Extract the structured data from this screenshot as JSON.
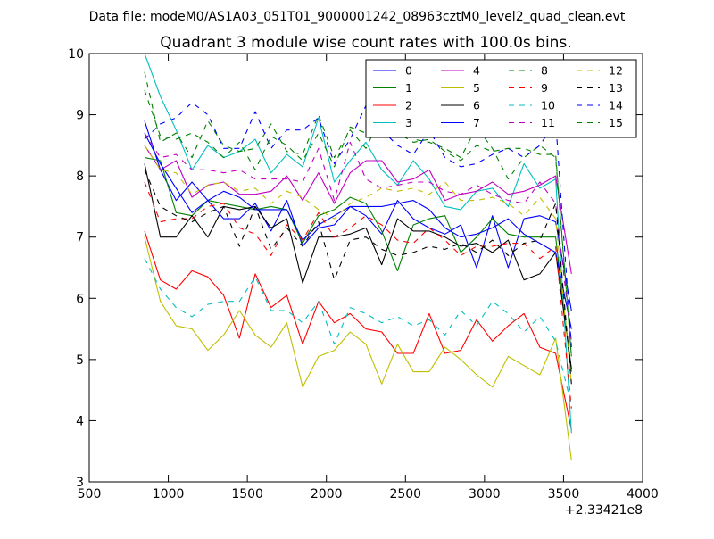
{
  "figure": {
    "suptitle": "Data file: modeM0/AS1A03_051T01_9000001242_08963cztM0_level2_quad_clean.evt"
  },
  "chart_data": {
    "type": "line",
    "title": "Quadrant 3 module wise count rates with 100.0s bins.",
    "xlabel": "",
    "ylabel": "",
    "x_offset_text": "+2.33421e8",
    "xlim": [
      500,
      4000
    ],
    "ylim": [
      3,
      10
    ],
    "xticks": [
      500,
      1000,
      1500,
      2000,
      2500,
      3000,
      3500,
      4000
    ],
    "yticks": [
      3,
      4,
      5,
      6,
      7,
      8,
      9,
      10
    ],
    "grid": false,
    "legend": {
      "placement": "top-right",
      "columns": 4
    },
    "x": [
      850,
      950,
      1050,
      1150,
      1250,
      1350,
      1450,
      1550,
      1650,
      1750,
      1850,
      1950,
      2050,
      2150,
      2250,
      2350,
      2450,
      2550,
      2650,
      2750,
      2850,
      2950,
      3050,
      3150,
      3250,
      3350,
      3450,
      3550
    ],
    "series": [
      {
        "name": "0",
        "color": "#0000ff",
        "dash": "solid",
        "values": [
          8.9,
          8.1,
          7.6,
          7.9,
          7.6,
          7.3,
          7.3,
          7.55,
          7.1,
          7.6,
          6.85,
          7.15,
          7.2,
          7.5,
          7.35,
          7.05,
          7.6,
          7.3,
          7.15,
          7.05,
          7.2,
          6.5,
          7.35,
          6.5,
          7.3,
          7.35,
          7.25,
          5.8
        ]
      },
      {
        "name": "1",
        "color": "#008000",
        "dash": "solid",
        "values": [
          8.3,
          8.25,
          7.4,
          7.35,
          7.6,
          7.55,
          7.5,
          7.45,
          7.5,
          7.45,
          6.9,
          7.35,
          7.45,
          7.65,
          7.55,
          7.1,
          6.45,
          7.2,
          7.3,
          7.35,
          6.75,
          7.0,
          7.3,
          7.05,
          7.0,
          7.0,
          7.0,
          4.8
        ]
      },
      {
        "name": "2",
        "color": "#ff0000",
        "dash": "solid",
        "values": [
          7.1,
          6.3,
          6.15,
          6.45,
          6.35,
          6.05,
          5.35,
          6.4,
          5.85,
          6.05,
          5.25,
          5.95,
          5.6,
          5.75,
          5.5,
          5.45,
          5.1,
          5.1,
          5.75,
          5.1,
          5.15,
          5.65,
          5.3,
          5.55,
          5.75,
          5.2,
          5.1,
          3.85
        ]
      },
      {
        "name": "3",
        "color": "#00bfbf",
        "dash": "solid",
        "values": [
          10.0,
          9.3,
          8.75,
          8.1,
          8.5,
          8.3,
          8.4,
          8.6,
          8.05,
          8.35,
          8.15,
          8.95,
          7.9,
          8.25,
          8.55,
          8.1,
          7.85,
          8.25,
          7.95,
          7.5,
          7.45,
          7.75,
          7.8,
          7.5,
          8.2,
          7.8,
          7.95,
          3.8
        ]
      },
      {
        "name": "4",
        "color": "#bf00bf",
        "dash": "solid",
        "values": [
          8.5,
          8.1,
          8.25,
          7.65,
          7.85,
          7.9,
          7.7,
          7.7,
          7.75,
          8.0,
          7.6,
          8.05,
          7.55,
          8.05,
          8.25,
          8.25,
          7.9,
          7.95,
          8.1,
          7.6,
          7.7,
          7.75,
          7.9,
          7.7,
          7.75,
          7.85,
          8.0,
          6.4
        ]
      },
      {
        "name": "5",
        "color": "#bfbf00",
        "dash": "solid",
        "values": [
          7.0,
          5.95,
          5.55,
          5.5,
          5.15,
          5.4,
          5.8,
          5.4,
          5.2,
          5.6,
          4.55,
          5.05,
          5.15,
          5.45,
          5.25,
          4.6,
          5.25,
          4.8,
          4.8,
          5.2,
          5.0,
          4.75,
          4.55,
          5.05,
          4.9,
          4.75,
          5.35,
          3.35
        ]
      },
      {
        "name": "6",
        "color": "#000000",
        "dash": "solid",
        "values": [
          8.2,
          7.0,
          7.0,
          7.35,
          7.0,
          7.5,
          7.45,
          7.5,
          7.15,
          7.3,
          6.25,
          7.0,
          7.0,
          7.05,
          7.15,
          6.55,
          7.3,
          7.1,
          7.1,
          7.0,
          6.85,
          6.9,
          6.75,
          6.95,
          6.3,
          6.4,
          6.75,
          4.85
        ]
      },
      {
        "name": "7",
        "color": "#0000ff",
        "dash": "solid",
        "values": [
          8.7,
          8.2,
          7.8,
          7.4,
          7.6,
          7.75,
          7.65,
          7.45,
          7.45,
          7.45,
          6.95,
          7.2,
          7.35,
          7.5,
          7.5,
          7.5,
          7.55,
          7.6,
          7.45,
          7.15,
          7.0,
          7.05,
          7.15,
          7.3,
          7.05,
          6.9,
          6.75,
          5.5
        ]
      },
      {
        "name": "8",
        "color": "#008000",
        "dash": "dashed",
        "values": [
          9.7,
          8.55,
          8.7,
          8.3,
          8.9,
          8.5,
          8.4,
          8.45,
          8.85,
          8.4,
          8.35,
          9.0,
          8.3,
          8.75,
          8.45,
          9.0,
          8.9,
          8.6,
          8.55,
          8.45,
          8.3,
          8.8,
          8.45,
          7.95,
          8.3,
          8.5,
          8.3,
          5.05
        ]
      },
      {
        "name": "9",
        "color": "#ff0000",
        "dash": "dashed",
        "values": [
          7.9,
          7.25,
          7.3,
          7.3,
          7.5,
          7.55,
          7.15,
          7.05,
          6.7,
          7.2,
          6.95,
          7.4,
          7.0,
          7.15,
          7.35,
          7.2,
          6.95,
          6.9,
          7.15,
          6.95,
          6.7,
          6.85,
          6.85,
          6.9,
          6.9,
          6.65,
          6.85,
          4.2
        ]
      },
      {
        "name": "10",
        "color": "#00bfbf",
        "dash": "dashed",
        "values": [
          6.65,
          6.15,
          5.85,
          5.7,
          5.9,
          5.95,
          5.95,
          6.35,
          5.8,
          5.8,
          5.6,
          5.95,
          5.25,
          5.85,
          5.75,
          5.6,
          5.7,
          5.55,
          5.65,
          5.4,
          5.8,
          5.55,
          5.95,
          5.75,
          5.45,
          5.7,
          5.3,
          4.25
        ]
      },
      {
        "name": "11",
        "color": "#bf00bf",
        "dash": "dashed",
        "values": [
          8.7,
          8.3,
          8.35,
          8.1,
          8.1,
          8.05,
          8.1,
          7.95,
          7.95,
          7.95,
          7.9,
          8.45,
          7.6,
          8.55,
          7.95,
          7.8,
          7.85,
          7.9,
          7.9,
          7.75,
          7.7,
          7.85,
          7.7,
          7.6,
          7.55,
          7.9,
          7.55,
          5.3
        ]
      },
      {
        "name": "12",
        "color": "#bfbf00",
        "dash": "dashed",
        "values": [
          8.5,
          8.1,
          8.05,
          7.7,
          7.85,
          7.9,
          7.75,
          7.8,
          7.55,
          7.75,
          7.65,
          7.45,
          7.3,
          7.55,
          7.65,
          7.8,
          7.75,
          7.8,
          7.7,
          7.9,
          7.6,
          7.6,
          7.65,
          7.55,
          7.35,
          7.65,
          7.3,
          4.6
        ]
      },
      {
        "name": "13",
        "color": "#000000",
        "dash": "dashed",
        "values": [
          8.1,
          7.5,
          7.35,
          7.25,
          7.4,
          7.5,
          6.85,
          7.5,
          6.8,
          7.15,
          6.85,
          7.25,
          6.3,
          6.95,
          7.0,
          6.8,
          6.7,
          6.75,
          6.85,
          6.8,
          6.9,
          6.75,
          6.95,
          6.7,
          6.9,
          6.95,
          7.55,
          4.6
        ]
      },
      {
        "name": "14",
        "color": "#0000ff",
        "dash": "dashed",
        "values": [
          8.6,
          8.85,
          8.95,
          9.2,
          9.0,
          8.45,
          8.45,
          9.05,
          8.45,
          8.75,
          8.75,
          8.95,
          8.2,
          8.6,
          9.15,
          8.75,
          8.5,
          8.35,
          8.75,
          8.3,
          8.15,
          8.2,
          8.35,
          8.45,
          8.3,
          8.5,
          8.9,
          5.2
        ]
      },
      {
        "name": "15",
        "color": "#008000",
        "dash": "dashed",
        "values": [
          9.4,
          8.65,
          8.6,
          8.7,
          8.55,
          8.3,
          8.55,
          8.1,
          8.65,
          8.5,
          8.25,
          8.7,
          8.15,
          8.8,
          8.7,
          8.9,
          8.7,
          8.55,
          8.6,
          8.4,
          8.25,
          8.5,
          8.4,
          8.45,
          8.45,
          8.35,
          8.35,
          5.05
        ]
      }
    ]
  }
}
